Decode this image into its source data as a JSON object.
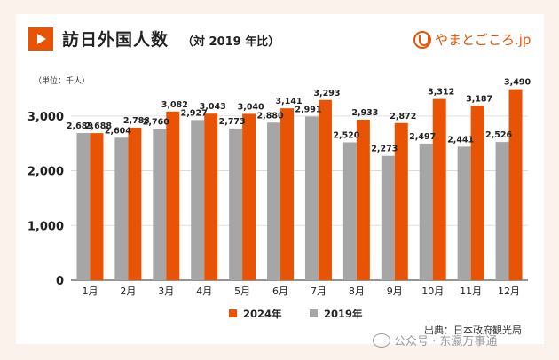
{
  "header": {
    "title": "訪日外国人数",
    "subtitle": "（対 2019 年比）",
    "logo_text": "やまとごころ.jp",
    "unit": "（単位：千人）"
  },
  "colors": {
    "accent": "#e95404",
    "series_2024": "#e95404",
    "series_2019": "#a6a6a6",
    "background": "#fcf2ec"
  },
  "chart_data": {
    "type": "bar",
    "title": "訪日外国人数",
    "subtitle": "（対 2019 年比）",
    "unit_label": "（単位：千人）",
    "categories": [
      "1月",
      "2月",
      "3月",
      "4月",
      "5月",
      "6月",
      "7月",
      "8月",
      "9月",
      "10月",
      "11月",
      "12月"
    ],
    "series": [
      {
        "name": "2024年",
        "color": "#e95404",
        "values": [
          2688,
          2788,
          3082,
          3043,
          3040,
          3141,
          3293,
          2933,
          2872,
          3312,
          3187,
          3490
        ]
      },
      {
        "name": "2019年",
        "color": "#a6a6a6",
        "values": [
          2689,
          2604,
          2760,
          2927,
          2773,
          2880,
          2991,
          2520,
          2273,
          2497,
          2441,
          2526
        ]
      }
    ],
    "value_labels_2024": [
      "2,688",
      "2,788",
      "3,082",
      "3,043",
      "3,040",
      "3,141",
      "3,293",
      "2,933",
      "2,872",
      "3,312",
      "3,187",
      "3,490"
    ],
    "value_labels_2019": [
      "2,689",
      "2,604",
      "2,760",
      "2,927",
      "2,773",
      "2,880",
      "2,991",
      "2,520",
      "2,273",
      "2,497",
      "2,441",
      "2,526"
    ],
    "ylim": [
      0,
      3500
    ],
    "y_ticks": [
      0,
      1000,
      2000,
      3000
    ],
    "y_tick_labels": [
      "0",
      "1,000",
      "2,000",
      "3,000"
    ],
    "grid": true,
    "legend_position": "bottom"
  },
  "legend": {
    "items": [
      {
        "label": "2024年",
        "color": "#e95404"
      },
      {
        "label": "2019年",
        "color": "#a6a6a6"
      }
    ]
  },
  "footer": {
    "source": "出典：日本政府観光局",
    "watermark": "公众号 · 东瀛万事通"
  }
}
